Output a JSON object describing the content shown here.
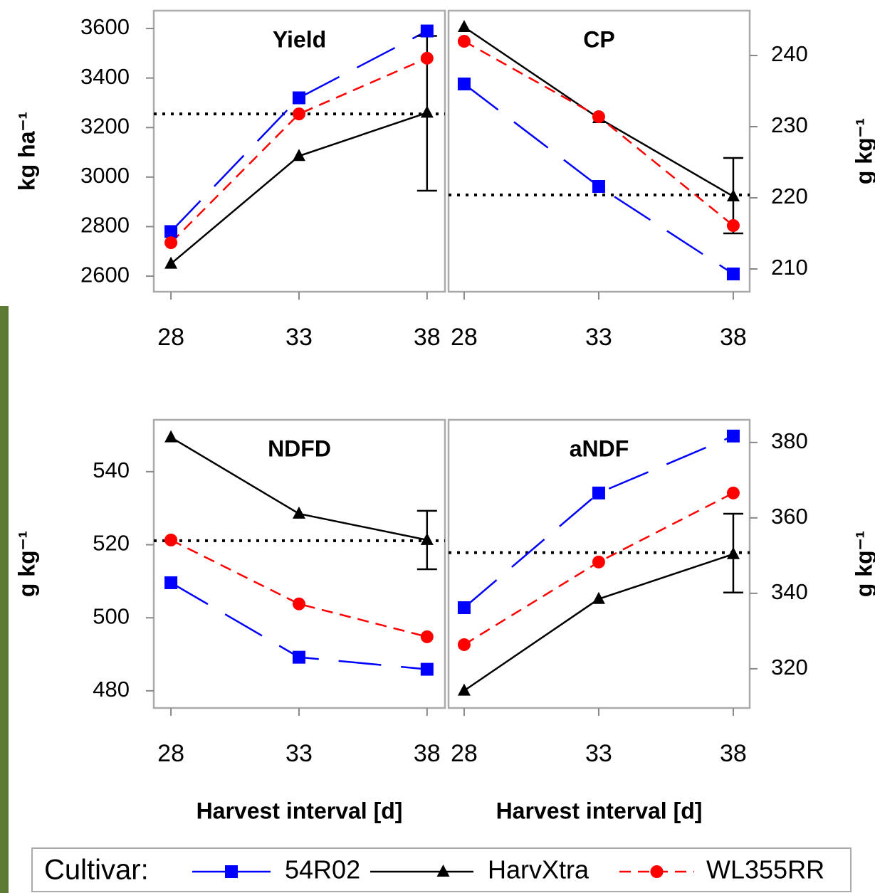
{
  "chart_data": [
    {
      "type": "line",
      "title": "Yield",
      "ylabel": "kg ha⁻¹",
      "x": [
        28,
        33,
        38
      ],
      "xlim": [
        27.33,
        38.7
      ],
      "xticks": [
        28,
        33,
        38
      ],
      "ylim": [
        2537,
        3672
      ],
      "yticks": [
        2600,
        2800,
        3000,
        3200,
        3400,
        3600
      ],
      "reference_line": 3255,
      "error_bar": {
        "x": 38,
        "low": 2945,
        "high": 3570
      },
      "series": [
        {
          "name": "54R02",
          "color": "#0000ff",
          "marker": "square",
          "line_style": "long-dash",
          "values": [
            2780,
            3320,
            3590
          ]
        },
        {
          "name": "HarvXtra",
          "color": "#000000",
          "marker": "triangle",
          "line_style": "solid",
          "values": [
            2650,
            3085,
            3260
          ]
        },
        {
          "name": "WL355RR",
          "color": "#ff0000",
          "marker": "circle",
          "line_style": "dashed",
          "values": [
            2735,
            3255,
            3480
          ]
        }
      ]
    },
    {
      "type": "line",
      "title": "CP",
      "y2label": "g kg⁻¹",
      "x": [
        28,
        33,
        38
      ],
      "xlim": [
        27.42,
        38.61
      ],
      "xticks": [
        28,
        33,
        38
      ],
      "y2lim": [
        206.8,
        246.3
      ],
      "y2ticks": [
        210,
        220,
        230,
        240
      ],
      "reference_line": 220.4,
      "error_bar": {
        "x": 38,
        "low": 215,
        "high": 225.6
      },
      "series": [
        {
          "name": "54R02",
          "color": "#0000ff",
          "marker": "square",
          "line_style": "long-dash",
          "axis": "y2",
          "values": [
            236,
            221.6,
            209.3
          ]
        },
        {
          "name": "HarvXtra",
          "color": "#000000",
          "marker": "triangle",
          "line_style": "solid",
          "axis": "y2",
          "values": [
            244,
            231.2,
            220.2
          ]
        },
        {
          "name": "WL355RR",
          "color": "#ff0000",
          "marker": "circle",
          "line_style": "dashed",
          "axis": "y2",
          "values": [
            242,
            231.4,
            216.1
          ]
        }
      ]
    },
    {
      "type": "line",
      "title": "NDFD",
      "ylabel": "g kg⁻¹",
      "xlabel": "Harvest interval [d]",
      "x": [
        28,
        33,
        38
      ],
      "xlim": [
        27.33,
        38.7
      ],
      "xticks": [
        28,
        33,
        38
      ],
      "ylim": [
        475.3,
        554.2
      ],
      "yticks": [
        480,
        500,
        520,
        540
      ],
      "reference_line": 521.1,
      "error_bar": {
        "x": 38,
        "low": 513.3,
        "high": 529.3
      },
      "series": [
        {
          "name": "54R02",
          "color": "#0000ff",
          "marker": "square",
          "line_style": "long-dash",
          "values": [
            509.6,
            489.2,
            485.9
          ]
        },
        {
          "name": "HarvXtra",
          "color": "#000000",
          "marker": "triangle",
          "line_style": "solid",
          "values": [
            549.4,
            528.5,
            521.3
          ]
        },
        {
          "name": "WL355RR",
          "color": "#ff0000",
          "marker": "circle",
          "line_style": "dashed",
          "values": [
            521.3,
            503.8,
            494.8
          ]
        }
      ]
    },
    {
      "type": "line",
      "title": "aNDF",
      "y2label": "g kg⁻¹",
      "xlabel": "Harvest interval [d]",
      "x": [
        28,
        33,
        38
      ],
      "xlim": [
        27.42,
        38.61
      ],
      "xticks": [
        28,
        33,
        38
      ],
      "y2lim": [
        309.6,
        386
      ],
      "y2ticks": [
        320,
        340,
        360,
        380
      ],
      "reference_line": 350.8,
      "error_bar": {
        "x": 38,
        "low": 340.2,
        "high": 361.1
      },
      "series": [
        {
          "name": "54R02",
          "color": "#0000ff",
          "marker": "square",
          "line_style": "long-dash",
          "axis": "y2",
          "values": [
            336.2,
            366.6,
            381.7
          ]
        },
        {
          "name": "HarvXtra",
          "color": "#000000",
          "marker": "triangle",
          "line_style": "solid",
          "axis": "y2",
          "values": [
            314.2,
            338.5,
            350.4
          ]
        },
        {
          "name": "WL355RR",
          "color": "#ff0000",
          "marker": "circle",
          "line_style": "dashed",
          "axis": "y2",
          "values": [
            326.4,
            348.3,
            366.6
          ]
        }
      ]
    }
  ],
  "legend": {
    "title": "Cultivar:"
  }
}
